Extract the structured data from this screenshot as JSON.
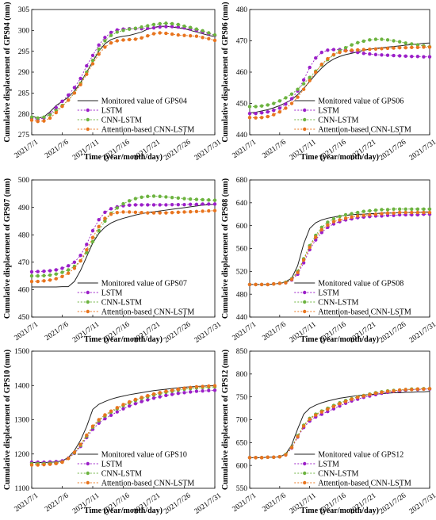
{
  "x_dates": [
    "2021/7/1",
    "2021/7/2",
    "2021/7/3",
    "2021/7/4",
    "2021/7/5",
    "2021/7/6",
    "2021/7/7",
    "2021/7/8",
    "2021/7/9",
    "2021/7/10",
    "2021/7/11",
    "2021/7/12",
    "2021/7/13",
    "2021/7/14",
    "2021/7/15",
    "2021/7/16",
    "2021/7/17",
    "2021/7/18",
    "2021/7/19",
    "2021/7/20",
    "2021/7/21",
    "2021/7/22",
    "2021/7/23",
    "2021/7/24",
    "2021/7/25",
    "2021/7/26",
    "2021/7/27",
    "2021/7/28",
    "2021/7/29",
    "2021/7/30",
    "2021/7/31"
  ],
  "colors": {
    "monitored": "#222222",
    "lstm": "#9b1fc8",
    "cnn_lstm": "#6cb33f",
    "attention": "#e8741e"
  },
  "chart_data": [
    {
      "type": "line",
      "xlabel": "Time (year/month/day)",
      "ylabel": "Cumulative displacement of GPS04 (mm)",
      "ylim": [
        275,
        305
      ],
      "yticks": [
        275,
        280,
        285,
        290,
        295,
        300,
        305
      ],
      "xticks": [
        "2021/7/1",
        "2021/7/6",
        "2021/7/11",
        "2021/7/16",
        "2021/7/21",
        "2021/7/26",
        "2021/7/31"
      ],
      "legend_position": "bottom-right",
      "series": [
        {
          "name": "Monitored value of GPS04",
          "values": [
            279.5,
            279.0,
            279.3,
            280.5,
            282.0,
            283.0,
            284.0,
            285.5,
            287.5,
            290.0,
            292.5,
            295.0,
            296.8,
            297.8,
            298.3,
            298.6,
            298.8,
            299.2,
            299.6,
            300.3,
            300.7,
            301.0,
            301.0,
            300.8,
            300.6,
            300.4,
            300.0,
            299.6,
            299.2,
            298.8,
            298.5
          ]
        },
        {
          "name": "LSTM",
          "values": [
            279.0,
            278.7,
            279.0,
            280.0,
            281.5,
            283.0,
            284.5,
            286.3,
            288.5,
            291.5,
            294.0,
            296.5,
            298.3,
            299.5,
            300.1,
            300.3,
            300.4,
            300.4,
            300.4,
            300.5,
            300.6,
            300.8,
            300.9,
            300.9,
            300.8,
            300.6,
            300.3,
            300.0,
            299.6,
            299.2,
            298.8
          ]
        },
        {
          "name": "CNN-LSTM",
          "values": [
            279.2,
            279.0,
            279.2,
            279.8,
            280.8,
            282.0,
            283.3,
            285.0,
            287.3,
            290.0,
            292.8,
            295.5,
            297.5,
            298.8,
            299.6,
            300.0,
            300.3,
            300.5,
            300.8,
            301.1,
            301.4,
            301.6,
            301.7,
            301.6,
            301.4,
            301.0,
            300.7,
            300.3,
            299.9,
            299.4,
            298.9
          ]
        },
        {
          "name": "Attention-based CNN-LSTM",
          "values": [
            278.5,
            278.2,
            278.3,
            279.0,
            280.3,
            281.8,
            283.3,
            285.0,
            287.0,
            289.5,
            292.0,
            294.3,
            296.0,
            297.0,
            297.5,
            297.7,
            297.8,
            297.9,
            298.2,
            298.7,
            299.2,
            299.4,
            299.3,
            299.1,
            298.9,
            298.8,
            298.7,
            298.6,
            298.3,
            298.0,
            297.6
          ]
        }
      ]
    },
    {
      "type": "line",
      "xlabel": "Time (year/month/day)",
      "ylabel": "Cumulative displacement of GPS06 (mm)",
      "ylim": [
        440,
        480
      ],
      "yticks": [
        440,
        450,
        460,
        470,
        480
      ],
      "xticks": [
        "2021/7/1",
        "2021/7/6",
        "2021/7/11",
        "2021/7/16",
        "2021/7/21",
        "2021/7/26",
        "2021/7/31"
      ],
      "legend_position": "bottom-right",
      "series": [
        {
          "name": "Monitored value of GPS06",
          "values": [
            447.0,
            447.2,
            447.6,
            448.0,
            448.6,
            449.3,
            450.2,
            451.2,
            452.8,
            454.8,
            457.0,
            459.3,
            461.3,
            463.0,
            464.2,
            465.0,
            465.6,
            466.0,
            466.5,
            467.0,
            467.3,
            467.6,
            467.8,
            468.0,
            468.2,
            468.4,
            468.6,
            468.8,
            469.0,
            469.2,
            469.3
          ]
        },
        {
          "name": "LSTM",
          "values": [
            446.8,
            446.8,
            447.0,
            447.3,
            447.8,
            448.5,
            449.8,
            451.5,
            454.0,
            457.5,
            461.5,
            464.5,
            466.3,
            467.0,
            467.2,
            467.2,
            467.0,
            466.7,
            466.3,
            466.0,
            465.8,
            465.6,
            465.5,
            465.4,
            465.3,
            465.2,
            465.1,
            465.0,
            465.0,
            464.9,
            464.9
          ]
        },
        {
          "name": "CNN-LSTM",
          "values": [
            449.0,
            449.0,
            449.2,
            449.5,
            450.0,
            450.8,
            451.8,
            453.0,
            454.5,
            456.3,
            458.3,
            460.3,
            462.3,
            464.0,
            465.5,
            466.8,
            467.8,
            468.7,
            469.4,
            469.9,
            470.3,
            470.5,
            470.5,
            470.3,
            470.0,
            469.7,
            469.3,
            469.0,
            468.7,
            468.4,
            468.1
          ]
        },
        {
          "name": "Attention-based CNN-LSTM",
          "values": [
            445.5,
            445.4,
            445.5,
            445.8,
            446.4,
            447.3,
            448.5,
            450.0,
            452.0,
            454.5,
            457.3,
            460.0,
            462.5,
            464.3,
            465.6,
            466.3,
            466.8,
            467.0,
            467.1,
            467.2,
            467.3,
            467.4,
            467.5,
            467.6,
            467.7,
            467.8,
            467.8,
            467.9,
            467.9,
            468.0,
            468.0
          ]
        }
      ]
    },
    {
      "type": "line",
      "xlabel": "Time (year/month/day)",
      "ylabel": "Cumulative displacement of GPS07 (mm)",
      "ylim": [
        450,
        500
      ],
      "yticks": [
        450,
        460,
        470,
        480,
        490,
        500
      ],
      "xticks": [
        "2021/7/1",
        "2021/7/6",
        "2021/7/11",
        "2021/7/16",
        "2021/7/21",
        "2021/7/26",
        "2021/7/31"
      ],
      "legend_position": "bottom-right",
      "series": [
        {
          "name": "Monitored value of GPS07",
          "values": [
            461.0,
            461.0,
            461.0,
            461.0,
            461.0,
            461.1,
            461.1,
            463.0,
            467.0,
            472.0,
            477.0,
            480.5,
            482.8,
            484.3,
            485.3,
            486.0,
            486.6,
            487.2,
            487.7,
            488.1,
            488.4,
            488.7,
            489.0,
            489.3,
            489.6,
            489.9,
            490.2,
            490.5,
            490.8,
            491.0,
            491.1
          ]
        },
        {
          "name": "LSTM",
          "values": [
            466.5,
            466.6,
            466.7,
            466.9,
            467.2,
            467.8,
            468.7,
            470.0,
            472.5,
            476.5,
            481.5,
            485.5,
            488.2,
            489.5,
            490.2,
            490.6,
            490.8,
            490.9,
            490.9,
            490.9,
            490.9,
            490.9,
            490.9,
            491.0,
            491.0,
            491.0,
            491.1,
            491.1,
            491.2,
            491.2,
            491.2
          ]
        },
        {
          "name": "CNN-LSTM",
          "values": [
            465.0,
            465.0,
            465.1,
            465.3,
            465.7,
            466.3,
            467.2,
            468.5,
            470.5,
            473.5,
            477.5,
            481.5,
            485.0,
            487.8,
            489.8,
            491.3,
            492.4,
            493.2,
            493.7,
            494.0,
            494.1,
            494.0,
            493.8,
            493.6,
            493.4,
            493.2,
            493.0,
            492.9,
            492.8,
            492.7,
            492.6
          ]
        },
        {
          "name": "Attention-based CNN-LSTM",
          "values": [
            463.0,
            463.0,
            463.2,
            463.5,
            464.0,
            464.8,
            466.0,
            467.8,
            470.5,
            474.5,
            479.0,
            483.0,
            486.0,
            487.5,
            488.1,
            488.3,
            488.3,
            488.2,
            488.1,
            488.0,
            488.0,
            488.0,
            488.0,
            488.1,
            488.2,
            488.3,
            488.4,
            488.5,
            488.6,
            488.7,
            488.8
          ]
        }
      ]
    },
    {
      "type": "line",
      "xlabel": "Time (year/month/day)",
      "ylabel": "Cumulative displacement of GPS08 (mm)",
      "ylim": [
        440,
        680
      ],
      "yticks": [
        440,
        480,
        520,
        560,
        600,
        640,
        680
      ],
      "xticks": [
        "2021/7/1",
        "2021/7/6",
        "2021/7/11",
        "2021/7/16",
        "2021/7/21",
        "2021/7/26",
        "2021/7/31"
      ],
      "legend_position": "bottom-right",
      "series": [
        {
          "name": "Monitored value of GPS08",
          "values": [
            497,
            497,
            497,
            497,
            498,
            499,
            502,
            508,
            530,
            568,
            595,
            605,
            610,
            613,
            615,
            617,
            618,
            619,
            620,
            620,
            621,
            621,
            622,
            622,
            622,
            623,
            623,
            623,
            623,
            624,
            624
          ]
        },
        {
          "name": "LSTM",
          "values": [
            497,
            497,
            497,
            497,
            498,
            499,
            500,
            505,
            515,
            535,
            558,
            575,
            588,
            597,
            603,
            607,
            610,
            612,
            614,
            615,
            616,
            617,
            617,
            618,
            618,
            619,
            619,
            619,
            619,
            620,
            620
          ]
        },
        {
          "name": "CNN-LSTM",
          "values": [
            497,
            497,
            497,
            497,
            498,
            499,
            501,
            507,
            520,
            542,
            565,
            583,
            597,
            606,
            612,
            616,
            619,
            621,
            623,
            625,
            626,
            627,
            628,
            628,
            629,
            629,
            629,
            629,
            629,
            629,
            629
          ]
        },
        {
          "name": "Attention-based CNN-LSTM",
          "values": [
            497,
            497,
            497,
            497,
            498,
            499,
            500,
            506,
            518,
            540,
            562,
            580,
            593,
            601,
            607,
            610,
            613,
            615,
            617,
            618,
            619,
            620,
            621,
            622,
            622,
            623,
            623,
            623,
            623,
            623,
            623
          ]
        }
      ]
    },
    {
      "type": "line",
      "xlabel": "Time (year/month/day)",
      "ylabel": "Cumulative displacement of GPS10 (mm)",
      "ylim": [
        1100,
        1500
      ],
      "yticks": [
        1100,
        1200,
        1300,
        1400,
        1500
      ],
      "xticks": [
        "2021/7/1",
        "2021/7/6",
        "2021/7/11",
        "2021/7/16",
        "2021/7/21",
        "2021/7/26",
        "2021/7/31"
      ],
      "legend_position": "bottom-right",
      "series": [
        {
          "name": "Monitored value of GPS10",
          "values": [
            1175,
            1175,
            1175,
            1176,
            1177,
            1180,
            1190,
            1210,
            1240,
            1280,
            1330,
            1345,
            1353,
            1360,
            1365,
            1369,
            1373,
            1376,
            1379,
            1382,
            1385,
            1387,
            1389,
            1391,
            1393,
            1395,
            1396,
            1397,
            1398,
            1399,
            1400
          ]
        },
        {
          "name": "LSTM",
          "values": [
            1176,
            1176,
            1176,
            1177,
            1178,
            1180,
            1188,
            1202,
            1222,
            1248,
            1272,
            1290,
            1303,
            1313,
            1323,
            1332,
            1340,
            1347,
            1353,
            1358,
            1363,
            1367,
            1371,
            1374,
            1377,
            1379,
            1381,
            1383,
            1384,
            1385,
            1386
          ]
        },
        {
          "name": "CNN-LSTM",
          "values": [
            1172,
            1172,
            1172,
            1173,
            1174,
            1177,
            1187,
            1203,
            1225,
            1252,
            1278,
            1297,
            1311,
            1322,
            1332,
            1341,
            1349,
            1356,
            1362,
            1367,
            1372,
            1376,
            1380,
            1383,
            1386,
            1389,
            1391,
            1393,
            1394,
            1395,
            1396
          ]
        },
        {
          "name": "Attention-based CNN-LSTM",
          "values": [
            1168,
            1168,
            1169,
            1170,
            1172,
            1176,
            1187,
            1205,
            1228,
            1255,
            1281,
            1300,
            1314,
            1325,
            1335,
            1344,
            1352,
            1359,
            1365,
            1370,
            1375,
            1379,
            1383,
            1386,
            1389,
            1392,
            1394,
            1396,
            1397,
            1398,
            1399
          ]
        }
      ]
    },
    {
      "type": "line",
      "xlabel": "Time (year/month/day)",
      "ylabel": "Cumulative displacement of GPS12 (mm)",
      "ylim": [
        550,
        850
      ],
      "yticks": [
        550,
        600,
        650,
        700,
        750,
        800,
        850
      ],
      "xticks": [
        "2021/7/1",
        "2021/7/6",
        "2021/7/11",
        "2021/7/16",
        "2021/7/21",
        "2021/7/26",
        "2021/7/31"
      ],
      "legend_position": "bottom-right",
      "series": [
        {
          "name": "Monitored value of GPS12",
          "values": [
            617,
            617,
            617,
            618,
            618,
            619,
            625,
            645,
            680,
            712,
            725,
            732,
            737,
            741,
            744,
            747,
            749,
            751,
            753,
            754,
            755,
            756,
            757,
            758,
            759,
            759,
            760,
            760,
            761,
            761,
            762
          ]
        },
        {
          "name": "LSTM",
          "values": [
            617,
            617,
            617,
            618,
            618,
            619,
            623,
            638,
            662,
            683,
            697,
            706,
            712,
            718,
            724,
            730,
            736,
            741,
            745,
            749,
            752,
            755,
            758,
            760,
            762,
            763,
            765,
            766,
            766,
            767,
            767
          ]
        },
        {
          "name": "CNN-LSTM",
          "values": [
            617,
            617,
            617,
            618,
            618,
            619,
            624,
            640,
            665,
            688,
            703,
            712,
            719,
            725,
            731,
            737,
            742,
            746,
            750,
            753,
            756,
            759,
            761,
            763,
            764,
            765,
            766,
            767,
            767,
            768,
            768
          ]
        },
        {
          "name": "Attention-based CNN-LSTM",
          "values": [
            617,
            617,
            617,
            618,
            618,
            619,
            623,
            639,
            663,
            686,
            701,
            710,
            717,
            723,
            729,
            735,
            740,
            745,
            749,
            752,
            755,
            758,
            760,
            762,
            763,
            765,
            766,
            766,
            767,
            767,
            768
          ]
        }
      ]
    }
  ]
}
